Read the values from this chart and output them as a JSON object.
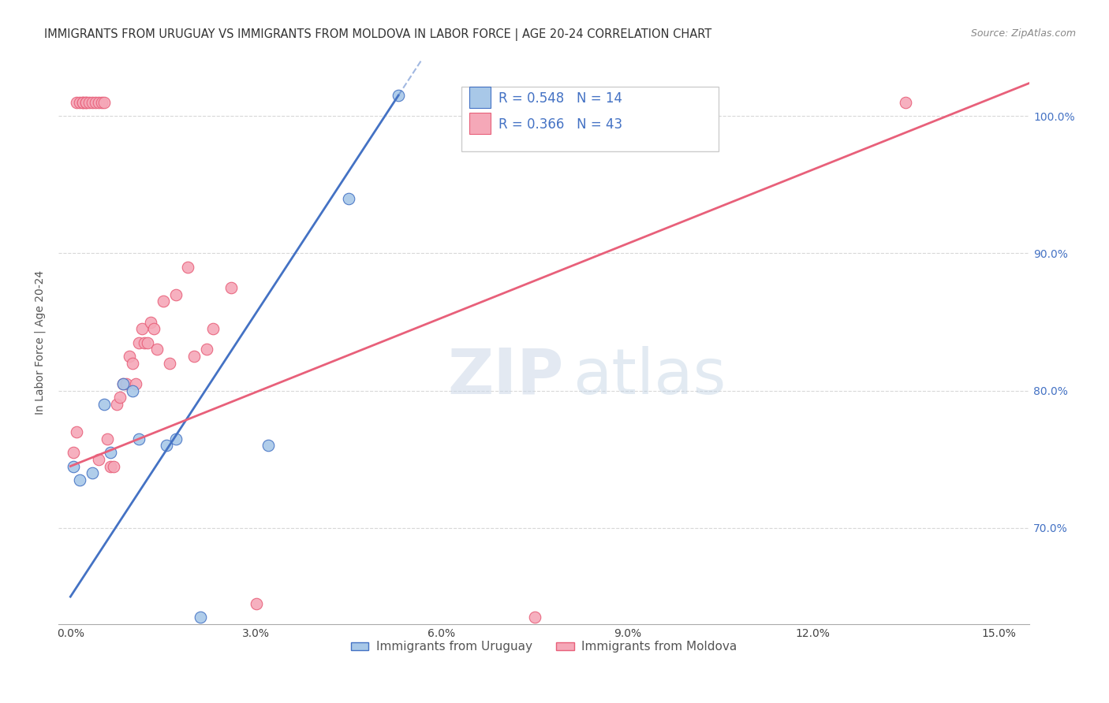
{
  "title": "IMMIGRANTS FROM URUGUAY VS IMMIGRANTS FROM MOLDOVA IN LABOR FORCE | AGE 20-24 CORRELATION CHART",
  "source": "Source: ZipAtlas.com",
  "ylabel": "In Labor Force | Age 20-24",
  "xlim": [
    -0.2,
    15.5
  ],
  "ylim": [
    63.0,
    104.0
  ],
  "xticks": [
    0.0,
    3.0,
    6.0,
    9.0,
    12.0,
    15.0
  ],
  "xticklabels": [
    "0.0%",
    "3.0%",
    "6.0%",
    "9.0%",
    "12.0%",
    "15.0%"
  ],
  "yticks": [
    70.0,
    80.0,
    90.0,
    100.0
  ],
  "yticklabels": [
    "70.0%",
    "80.0%",
    "90.0%",
    "100.0%"
  ],
  "uruguay_color": "#a8c8e8",
  "moldova_color": "#f5a8b8",
  "line_uruguay_color": "#4472c4",
  "line_moldova_color": "#e8607a",
  "R_uruguay": 0.548,
  "N_uruguay": 14,
  "R_moldova": 0.366,
  "N_moldova": 43,
  "uruguay_x": [
    0.05,
    0.15,
    0.35,
    0.55,
    0.65,
    0.85,
    1.0,
    1.1,
    1.55,
    1.7,
    2.1,
    3.2,
    4.5,
    5.3
  ],
  "uruguay_y": [
    74.5,
    73.5,
    74.0,
    79.0,
    75.5,
    80.5,
    80.0,
    76.5,
    76.0,
    76.5,
    63.5,
    76.0,
    94.0,
    101.5
  ],
  "moldova_x": [
    0.05,
    0.1,
    0.1,
    0.15,
    0.2,
    0.2,
    0.25,
    0.25,
    0.3,
    0.35,
    0.4,
    0.45,
    0.45,
    0.5,
    0.55,
    0.6,
    0.65,
    0.7,
    0.75,
    0.8,
    0.85,
    0.9,
    0.95,
    1.0,
    1.05,
    1.1,
    1.15,
    1.2,
    1.25,
    1.3,
    1.35,
    1.4,
    1.5,
    1.6,
    1.7,
    1.9,
    2.0,
    2.2,
    2.3,
    2.6,
    3.0,
    7.5,
    13.5
  ],
  "moldova_y": [
    75.5,
    77.0,
    101.0,
    101.0,
    101.0,
    101.0,
    101.0,
    101.0,
    101.0,
    101.0,
    101.0,
    101.0,
    75.0,
    101.0,
    101.0,
    76.5,
    74.5,
    74.5,
    79.0,
    79.5,
    80.5,
    80.5,
    82.5,
    82.0,
    80.5,
    83.5,
    84.5,
    83.5,
    83.5,
    85.0,
    84.5,
    83.0,
    86.5,
    82.0,
    87.0,
    89.0,
    82.5,
    83.0,
    84.5,
    87.5,
    64.5,
    63.5,
    101.0
  ],
  "grid_color": "#d8d8d8",
  "background_color": "#ffffff",
  "title_fontsize": 10.5,
  "axis_label_fontsize": 10,
  "tick_fontsize": 10,
  "legend_fontsize": 12
}
